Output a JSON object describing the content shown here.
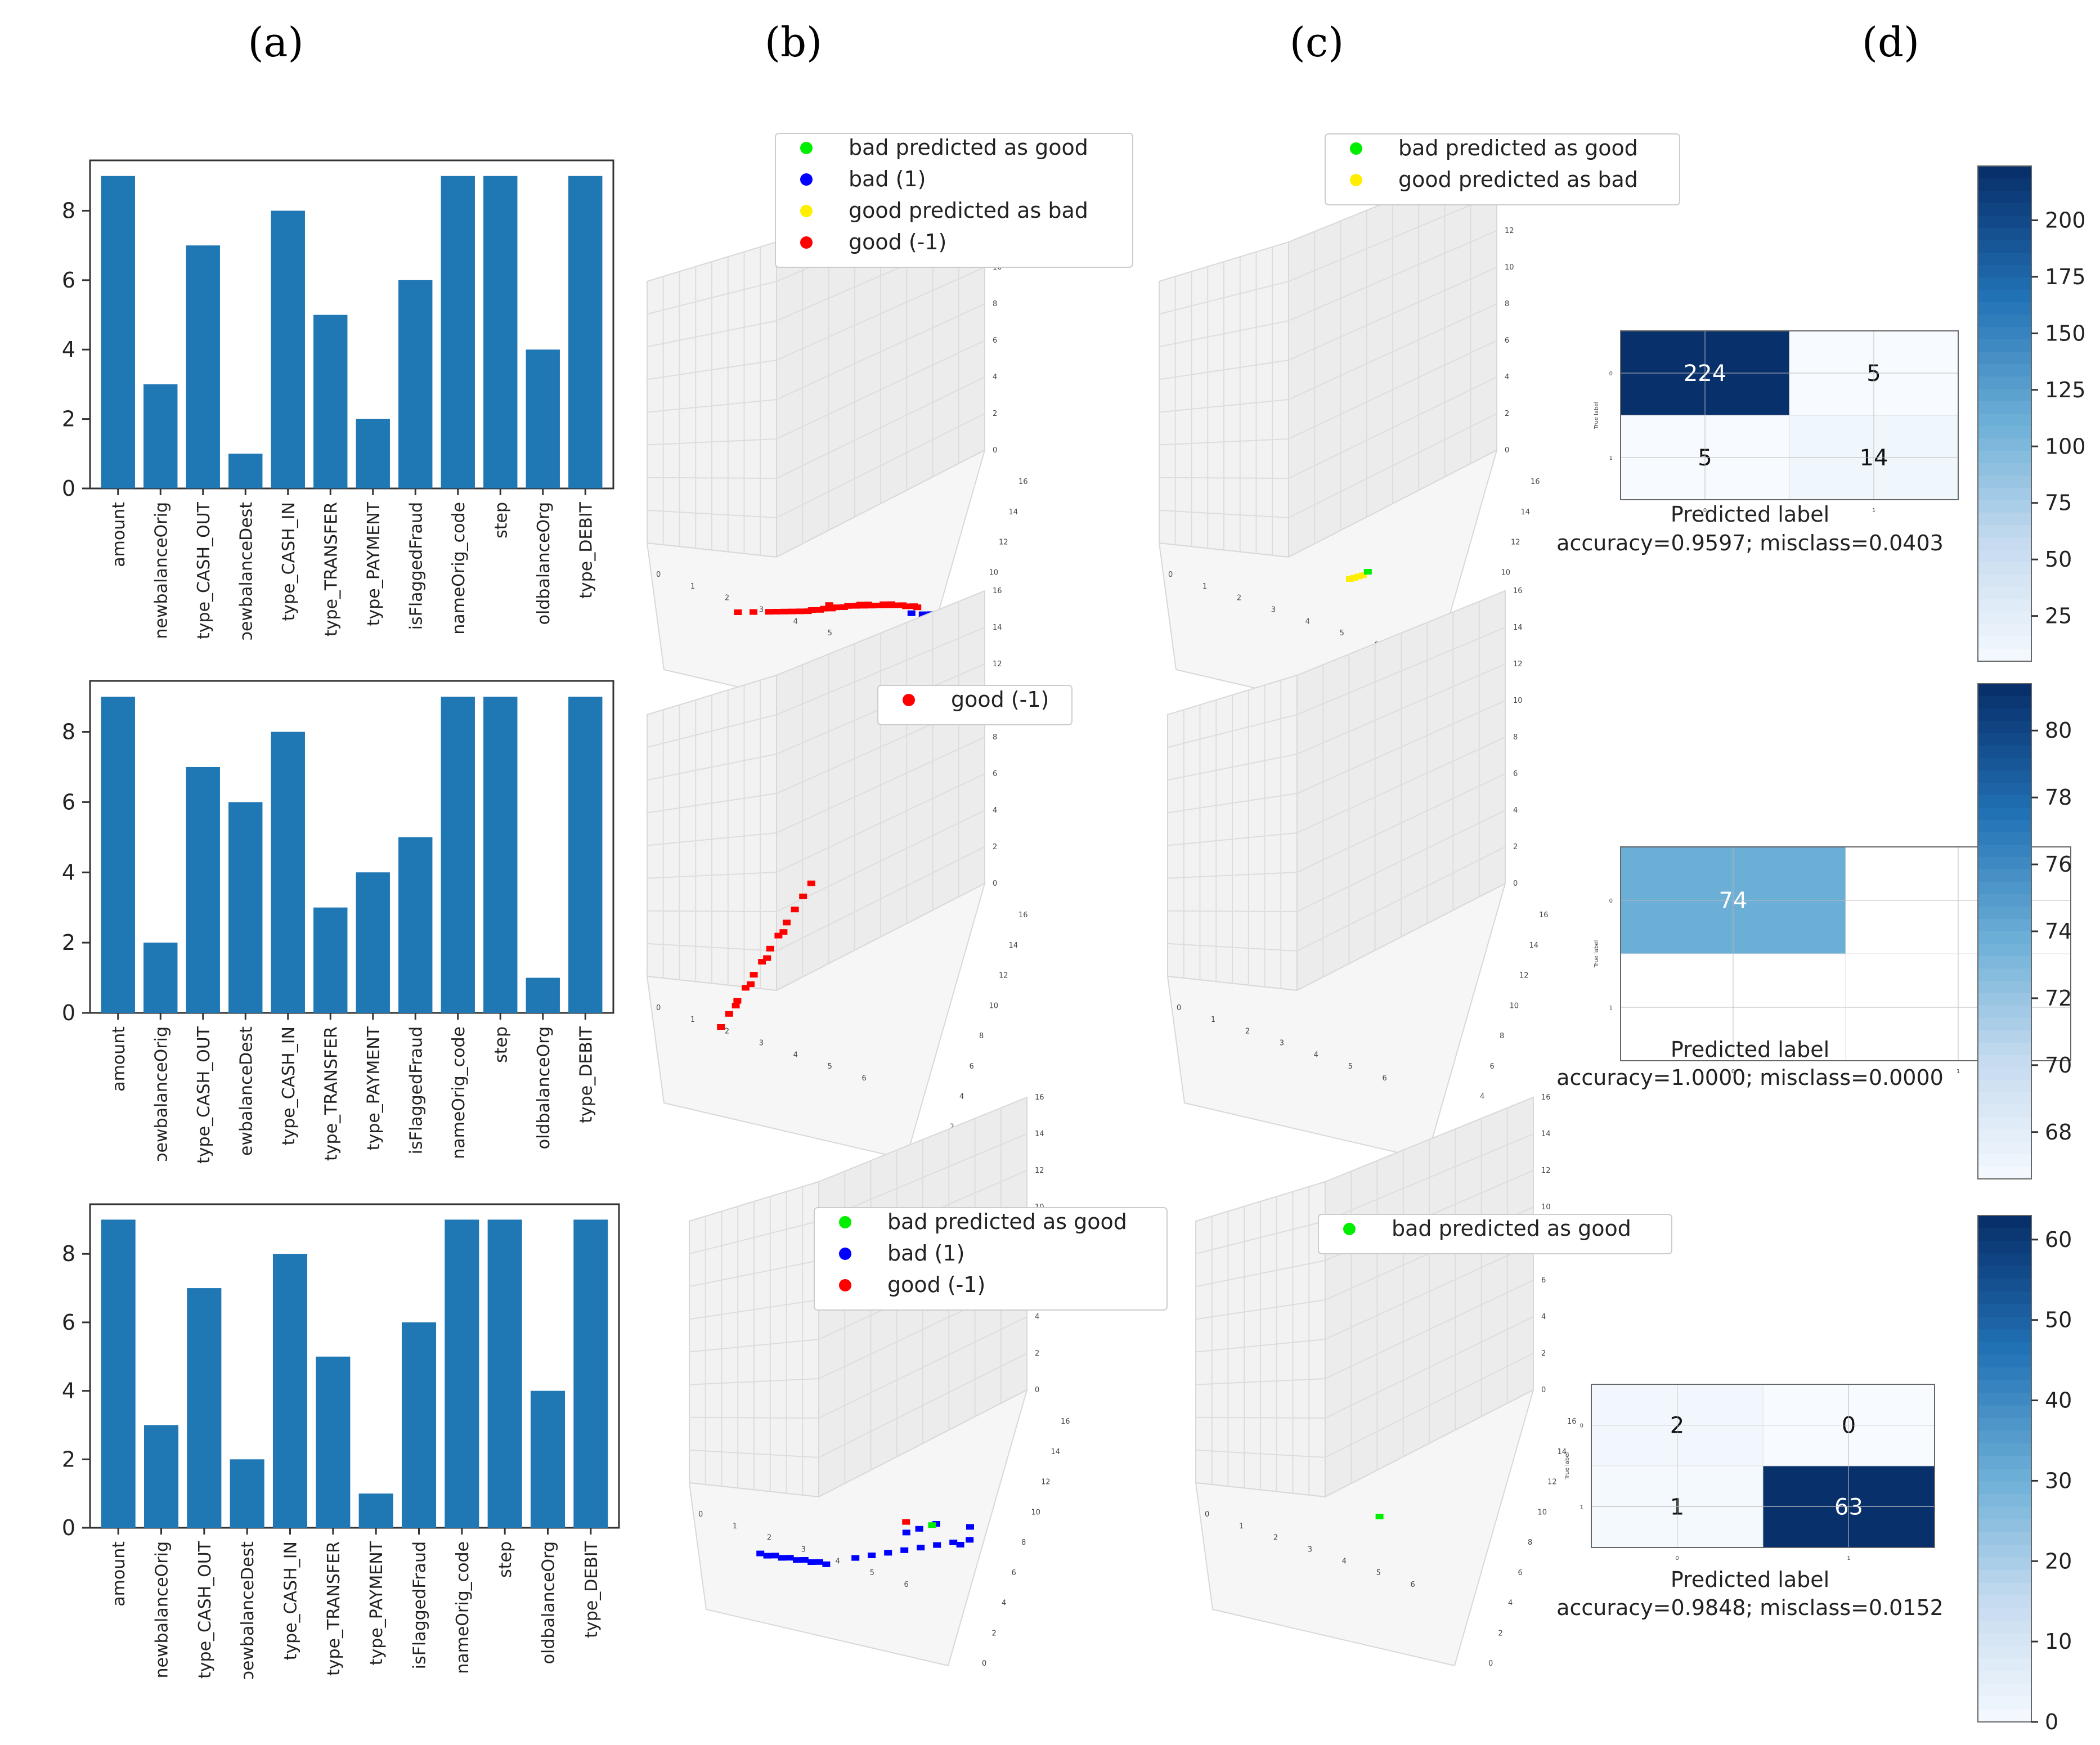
{
  "panel_labels": [
    "(a)",
    "(b)",
    "(c)",
    "(d)"
  ],
  "colors": {
    "bar": "#1f77b4",
    "good": "#ff0000",
    "bad": "#0000ff",
    "bad_predicted_as_good": "#00ee00",
    "good_predicted_as_bad": "#ffee00",
    "cm_dark": "#08306b",
    "cm_light": "#f7fbff"
  },
  "chart_data": [
    {
      "type": "bar",
      "panel": "(a)",
      "row": 1,
      "categories": [
        "amount",
        "newbalanceOrig",
        "type_CASH_OUT",
        "newbalanceDest",
        "type_CASH_IN",
        "type_TRANSFER",
        "type_PAYMENT",
        "isFlaggedFraud",
        "nameOrig_code",
        "step",
        "oldbalanceOrg",
        "type_DEBIT"
      ],
      "category_labels": [
        "amount",
        "newbalanceOrig",
        "type_CASH_OUT",
        "ɔewbalanceDest",
        "type_CASH_IN",
        "type_TRANSFER",
        "type_PAYMENT",
        "isFlaggedFraud",
        "nameOrig_code",
        "step",
        "oldbalanceOrg",
        "type_DEBIT"
      ],
      "values": [
        9,
        3,
        7,
        1,
        8,
        5,
        2,
        6,
        9,
        9,
        4,
        9
      ],
      "yticks": [
        0,
        2,
        4,
        6,
        8
      ],
      "ylim": [
        0,
        9.45
      ]
    },
    {
      "type": "bar",
      "panel": "(a)",
      "row": 2,
      "categories": [
        "amount",
        "newbalanceOrig",
        "type_CASH_OUT",
        "newbalanceDest",
        "type_CASH_IN",
        "type_TRANSFER",
        "type_PAYMENT",
        "isFlaggedFraud",
        "nameOrig_code",
        "step",
        "oldbalanceOrg",
        "type_DEBIT"
      ],
      "category_labels": [
        "amount",
        "ɔewbalanceOrig",
        "type_CASH_OUT",
        "ewbalanceDest",
        "type_CASH_IN",
        "type_TRANSFER",
        "type_PAYMENT",
        "isFlaggedFraud",
        "nameOrig_code",
        "step",
        "oldbalanceOrg",
        "type_DEBIT"
      ],
      "values": [
        9,
        2,
        7,
        6,
        8,
        3,
        4,
        5,
        9,
        9,
        1,
        9
      ],
      "yticks": [
        0,
        2,
        4,
        6,
        8
      ],
      "ylim": [
        0,
        9.45
      ]
    },
    {
      "type": "bar",
      "panel": "(a)",
      "row": 3,
      "categories": [
        "amount",
        "newbalanceOrig",
        "type_CASH_OUT",
        "newbalanceDest",
        "type_CASH_IN",
        "type_TRANSFER",
        "type_PAYMENT",
        "isFlaggedFraud",
        "nameOrig_code",
        "step",
        "oldbalanceOrg",
        "type_DEBIT"
      ],
      "category_labels": [
        "amount",
        "newbalanceOrig",
        "type_CASH_OUT",
        "ɔewbalanceDest",
        "type_CASH_IN",
        "type_TRANSFER",
        "type_PAYMENT",
        "isFlaggedFraud",
        "nameOrig_code",
        "step",
        "oldbalanceOrg",
        "type_DEBIT"
      ],
      "values": [
        9,
        3,
        7,
        2,
        8,
        5,
        1,
        6,
        9,
        9,
        4,
        9
      ],
      "yticks": [
        0,
        2,
        4,
        6,
        8
      ],
      "ylim": [
        0,
        9.45
      ]
    },
    {
      "type": "scatter",
      "panel": "(b)",
      "row": 1,
      "legend": [
        "bad predicted as good",
        "bad (1)",
        "good predicted as bad",
        "good (-1)"
      ],
      "legend_colors": [
        "#00ee00",
        "#0000ff",
        "#ffee00",
        "#ff0000"
      ],
      "axis_ticks_x": [
        "0",
        "1",
        "2",
        "3",
        "4",
        "5",
        "6"
      ],
      "axis_ticks_y": [
        "0",
        "2",
        "4",
        "6",
        "8",
        "10",
        "12",
        "14",
        "16"
      ],
      "axis_ticks_z": [
        "0",
        "2",
        "4",
        "6",
        "8",
        "10",
        "12",
        "14",
        "16"
      ],
      "series": [
        {
          "name": "good (-1)",
          "x": [
            1.2,
            1.6,
            2.0,
            2.4,
            2.8,
            3.1,
            3.4,
            3.7,
            4.0,
            4.3,
            4.6,
            4.9,
            5.2,
            5.5,
            5.8,
            2.2,
            2.6,
            3.0,
            3.3,
            3.6,
            3.9,
            4.2,
            4.5,
            4.8,
            5.1,
            5.4,
            5.7,
            3.5,
            4.4,
            5.0
          ],
          "y": [
            0.5,
            0.7,
            0.9,
            1.1,
            1.3,
            1.5,
            1.7,
            1.9,
            2.1,
            2.3,
            2.4,
            2.6,
            2.7,
            2.8,
            2.9,
            1.0,
            1.2,
            1.4,
            1.6,
            1.8,
            2.0,
            2.2,
            2.4,
            2.5,
            2.7,
            2.8,
            2.9,
            1.9,
            2.3,
            2.6
          ]
        },
        {
          "name": "bad (1)",
          "x": [
            5.7,
            6.0,
            6.2
          ],
          "y": [
            2.6,
            2.7,
            2.8
          ]
        }
      ]
    },
    {
      "type": "scatter",
      "panel": "(b)",
      "row": 2,
      "legend": [
        "good (-1)"
      ],
      "legend_colors": [
        "#ff0000"
      ],
      "axis_ticks_x": [
        "0",
        "1",
        "2",
        "3",
        "4",
        "5",
        "6"
      ],
      "axis_ticks_y": [
        "0",
        "2",
        "4",
        "6",
        "8",
        "10",
        "12",
        "14",
        "16"
      ],
      "axis_ticks_z": [
        "0",
        "2",
        "4",
        "6",
        "8",
        "10",
        "12",
        "14",
        "16"
      ],
      "series": [
        {
          "name": "good (-1)",
          "x": [
            0.6,
            0.7,
            0.8,
            0.9,
            1.0,
            1.1,
            1.2,
            1.3,
            1.4,
            1.5,
            1.6,
            1.7,
            0.8,
            1.0,
            1.2,
            1.4
          ],
          "y": [
            1.0,
            1.6,
            2.2,
            2.8,
            3.4,
            4.0,
            4.6,
            5.2,
            5.8,
            6.4,
            7.0,
            7.6,
            2.0,
            3.0,
            4.2,
            5.4
          ]
        }
      ]
    },
    {
      "type": "scatter",
      "panel": "(b)",
      "row": 3,
      "legend": [
        "bad predicted as good",
        "bad (1)",
        "good (-1)"
      ],
      "legend_colors": [
        "#00ee00",
        "#0000ff",
        "#ff0000"
      ],
      "axis_ticks_x": [
        "0",
        "1",
        "2",
        "3",
        "4",
        "5",
        "6"
      ],
      "axis_ticks_y": [
        "0",
        "2",
        "4",
        "6",
        "8",
        "10",
        "12",
        "14",
        "16"
      ],
      "axis_ticks_z": [
        "0",
        "2",
        "4",
        "6",
        "8",
        "10",
        "12",
        "14",
        "16"
      ],
      "series": [
        {
          "name": "bad (1)",
          "x": [
            0.7,
            0.9,
            1.1,
            1.3,
            1.5,
            1.7,
            1.9,
            2.1,
            2.3,
            2.5,
            3.2,
            3.6,
            4.0,
            4.4,
            4.8,
            5.2,
            5.6,
            6.0,
            5.9,
            5.8,
            4.3,
            4.6,
            5.0
          ],
          "y": [
            0.2,
            0.2,
            0.3,
            0.3,
            0.4,
            0.4,
            0.5,
            0.5,
            0.6,
            0.6,
            1.2,
            1.5,
            1.8,
            2.1,
            2.4,
            2.7,
            3.0,
            3.3,
            3.8,
            3.0,
            2.8,
            3.1,
            3.5
          ]
        },
        {
          "name": "good (-1)",
          "x": [
            4.2
          ],
          "y": [
            3.2
          ]
        },
        {
          "name": "bad predicted as good",
          "x": [
            4.9
          ],
          "y": [
            3.4
          ]
        }
      ]
    },
    {
      "type": "scatter",
      "panel": "(c)",
      "row": 1,
      "legend": [
        "bad predicted as good",
        "good predicted as bad"
      ],
      "legend_colors": [
        "#00ee00",
        "#ffee00"
      ],
      "axis_ticks_x": [
        "0",
        "1",
        "2",
        "3",
        "4",
        "5",
        "6"
      ],
      "axis_ticks_y": [
        "0",
        "2",
        "4",
        "6",
        "8",
        "10",
        "12",
        "14",
        "16"
      ],
      "axis_ticks_z": [
        "0",
        "2",
        "4",
        "6",
        "8",
        "10",
        "12",
        "14",
        "16"
      ],
      "series": [
        {
          "name": "good predicted as bad",
          "x": [
            3.5,
            3.6,
            3.7,
            3.8
          ],
          "y": [
            3.0,
            3.1,
            3.2,
            3.3
          ]
        },
        {
          "name": "bad predicted as good",
          "x": [
            3.9
          ],
          "y": [
            3.5
          ]
        }
      ]
    },
    {
      "type": "scatter",
      "panel": "(c)",
      "row": 2,
      "legend": [],
      "legend_colors": [],
      "axis_ticks_x": [
        "0",
        "1",
        "2",
        "3",
        "4",
        "5",
        "6"
      ],
      "axis_ticks_y": [
        "0",
        "2",
        "4",
        "6",
        "8",
        "10",
        "12",
        "14",
        "16"
      ],
      "axis_ticks_z": [
        "0",
        "2",
        "4",
        "6",
        "8",
        "10",
        "12",
        "14",
        "16"
      ],
      "series": []
    },
    {
      "type": "scatter",
      "panel": "(c)",
      "row": 3,
      "legend": [
        "bad predicted as good"
      ],
      "legend_colors": [
        "#00ee00"
      ],
      "axis_ticks_x": [
        "0",
        "1",
        "2",
        "3",
        "4",
        "5",
        "6"
      ],
      "axis_ticks_y": [
        "0",
        "2",
        "4",
        "6",
        "8",
        "10",
        "12",
        "14",
        "16"
      ],
      "axis_ticks_z": [
        "0",
        "2",
        "4",
        "6",
        "8",
        "10",
        "12",
        "14",
        "16"
      ],
      "series": [
        {
          "name": "bad predicted as good",
          "x": [
            3.3
          ],
          "y": [
            3.0
          ]
        }
      ]
    },
    {
      "type": "heatmap",
      "panel": "(d)",
      "row": 1,
      "matrix": [
        [
          224,
          5
        ],
        [
          5,
          14
        ]
      ],
      "xlabel": "Predicted label",
      "ylabel": "True label",
      "caption": "accuracy=0.9597; misclass=0.0403",
      "row_ticks": [
        "0",
        "1"
      ],
      "col_ticks": [
        "0",
        "1"
      ],
      "colorbar_ticks": [
        25,
        50,
        75,
        100,
        125,
        150,
        175,
        200
      ],
      "vmin": 5,
      "vmax": 224
    },
    {
      "type": "heatmap",
      "panel": "(d)",
      "row": 2,
      "matrix": [
        [
          74,
          null
        ],
        [
          null,
          null
        ]
      ],
      "xlabel": "Predicted label",
      "ylabel": "True label",
      "caption": "accuracy=1.0000; misclass=0.0000",
      "row_ticks": [
        "0",
        "1"
      ],
      "col_ticks": [
        "0",
        "1"
      ],
      "colorbar_ticks": [
        68,
        70,
        72,
        74,
        76,
        78,
        80
      ],
      "vmin": 66.6,
      "vmax": 81.4
    },
    {
      "type": "heatmap",
      "panel": "(d)",
      "row": 3,
      "matrix": [
        [
          2,
          0
        ],
        [
          1,
          63
        ]
      ],
      "xlabel": "Predicted label",
      "ylabel": "True label",
      "caption": "accuracy=0.9848; misclass=0.0152",
      "row_ticks": [
        "0",
        "1"
      ],
      "col_ticks": [
        "0",
        "1"
      ],
      "colorbar_ticks": [
        0,
        10,
        20,
        30,
        40,
        50,
        60
      ],
      "vmin": 0,
      "vmax": 63
    }
  ]
}
